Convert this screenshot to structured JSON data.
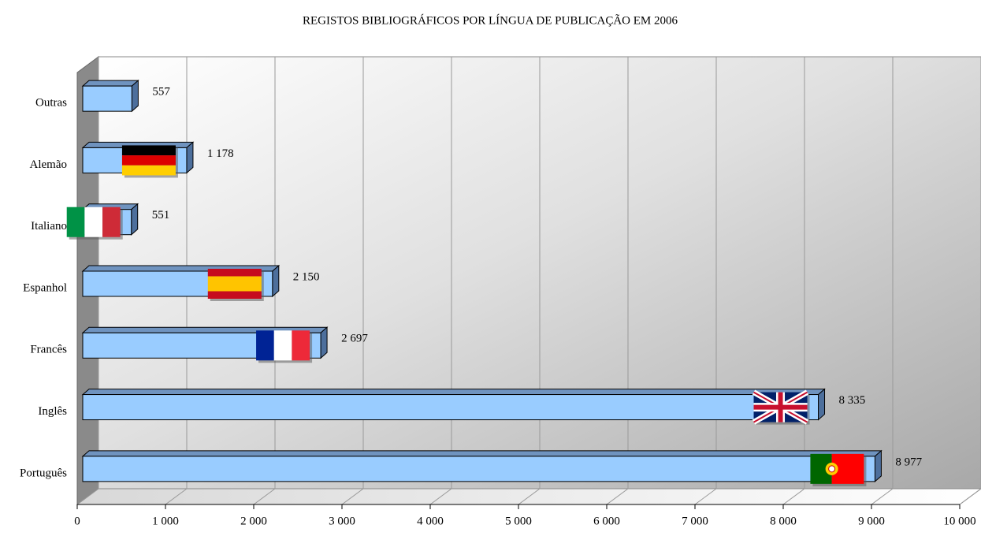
{
  "chart_data": {
    "type": "bar",
    "orientation": "horizontal",
    "title": "REGISTOS BIBLIOGRÁFICOS POR LÍNGUA DE PUBLICAÇÃO EM 2006",
    "categories": [
      "Outras",
      "Alemão",
      "Italiano",
      "Espanhol",
      "Francês",
      "Inglês",
      "Português"
    ],
    "values": [
      557,
      1178,
      551,
      2150,
      2697,
      8335,
      8977
    ],
    "value_labels": [
      "557",
      "1 178",
      "551",
      "2 150",
      "2 697",
      "8 335",
      "8 977"
    ],
    "color": "#99ccff",
    "xlim": [
      0,
      10000
    ],
    "xticks": [
      0,
      {
        "value": 1000,
        "label": "1 000"
      },
      {
        "value": 2000,
        "label": "2 000"
      },
      {
        "value": 3000,
        "label": "3 000"
      },
      {
        "value": 4000,
        "label": "4 000"
      },
      {
        "value": 5000,
        "label": "5 000"
      },
      {
        "value": 6000,
        "label": "6 000"
      },
      {
        "value": 7000,
        "label": "7 000"
      },
      {
        "value": 8000,
        "label": "8 000"
      },
      {
        "value": 9000,
        "label": "9 000"
      },
      {
        "value": 10000,
        "label": "10 000"
      }
    ],
    "grid": true
  }
}
